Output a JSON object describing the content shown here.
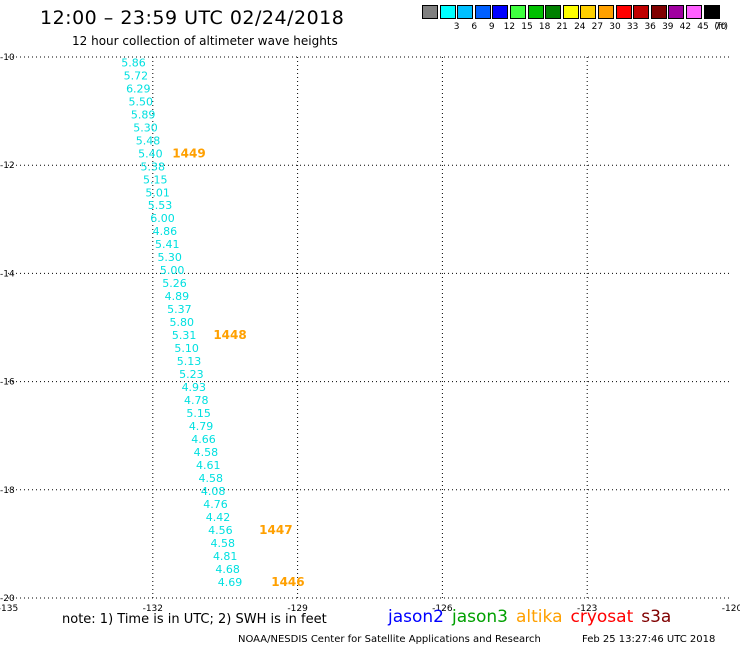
{
  "header": {
    "title": "12:00 – 23:59 UTC 02/24/2018",
    "subtitle": "12 hour collection of altimeter wave heights"
  },
  "legend": {
    "unit": "(ft)",
    "items": [
      {
        "label": "",
        "color": "#808080"
      },
      {
        "label": "3",
        "color": "#00ffff"
      },
      {
        "label": "6",
        "color": "#00c0ff"
      },
      {
        "label": "9",
        "color": "#0060ff"
      },
      {
        "label": "12",
        "color": "#0000ff"
      },
      {
        "label": "15",
        "color": "#40ff40"
      },
      {
        "label": "18",
        "color": "#00c000"
      },
      {
        "label": "21",
        "color": "#008000"
      },
      {
        "label": "24",
        "color": "#ffff00"
      },
      {
        "label": "27",
        "color": "#ffd000"
      },
      {
        "label": "30",
        "color": "#ffa000"
      },
      {
        "label": "33",
        "color": "#ff0000"
      },
      {
        "label": "36",
        "color": "#c00000"
      },
      {
        "label": "39",
        "color": "#800000"
      },
      {
        "label": "42",
        "color": "#a000a0"
      },
      {
        "label": "45",
        "color": "#ff60ff"
      },
      {
        "label": "70",
        "color": "#000000"
      }
    ]
  },
  "map": {
    "lon_range": [
      -135,
      -120
    ],
    "lat_range": [
      -20,
      -10
    ],
    "x_ticks": [
      "-135",
      "-132",
      "-129",
      "-126",
      "-123",
      "-120"
    ],
    "y_ticks": [
      "-10",
      "-12",
      "-14",
      "-16",
      "-18",
      "-20"
    ],
    "grid": "dotted",
    "wave_color": "#00e0e0",
    "time_color": "#ffa000",
    "wave_heights": [
      {
        "value": "5.86",
        "lon": -132.4,
        "lat": -10.1
      },
      {
        "value": "5.72",
        "lon": -132.35,
        "lat": -10.34
      },
      {
        "value": "6.29",
        "lon": -132.3,
        "lat": -10.58
      },
      {
        "value": "5.50",
        "lon": -132.25,
        "lat": -10.82
      },
      {
        "value": "5.89",
        "lon": -132.2,
        "lat": -11.06
      },
      {
        "value": "5.30",
        "lon": -132.15,
        "lat": -11.3
      },
      {
        "value": "5.48",
        "lon": -132.1,
        "lat": -11.54
      },
      {
        "value": "5.40",
        "lon": -132.05,
        "lat": -11.78
      },
      {
        "value": "5.38",
        "lon": -132.0,
        "lat": -12.02
      },
      {
        "value": "5.15",
        "lon": -131.95,
        "lat": -12.26
      },
      {
        "value": "5.01",
        "lon": -131.9,
        "lat": -12.5
      },
      {
        "value": "5.53",
        "lon": -131.85,
        "lat": -12.74
      },
      {
        "value": "6.00",
        "lon": -131.8,
        "lat": -12.98
      },
      {
        "value": "4.86",
        "lon": -131.75,
        "lat": -13.22
      },
      {
        "value": "5.41",
        "lon": -131.7,
        "lat": -13.46
      },
      {
        "value": "5.30",
        "lon": -131.65,
        "lat": -13.7
      },
      {
        "value": "5.00",
        "lon": -131.6,
        "lat": -13.94
      },
      {
        "value": "5.26",
        "lon": -131.55,
        "lat": -14.18
      },
      {
        "value": "4.89",
        "lon": -131.5,
        "lat": -14.42
      },
      {
        "value": "5.37",
        "lon": -131.45,
        "lat": -14.66
      },
      {
        "value": "5.80",
        "lon": -131.4,
        "lat": -14.9
      },
      {
        "value": "5.31",
        "lon": -131.35,
        "lat": -15.14
      },
      {
        "value": "5.10",
        "lon": -131.3,
        "lat": -15.38
      },
      {
        "value": "5.13",
        "lon": -131.25,
        "lat": -15.62
      },
      {
        "value": "5.23",
        "lon": -131.2,
        "lat": -15.86
      },
      {
        "value": "4.93",
        "lon": -131.15,
        "lat": -16.1
      },
      {
        "value": "4.78",
        "lon": -131.1,
        "lat": -16.34
      },
      {
        "value": "5.15",
        "lon": -131.05,
        "lat": -16.58
      },
      {
        "value": "4.79",
        "lon": -131.0,
        "lat": -16.82
      },
      {
        "value": "4.66",
        "lon": -130.95,
        "lat": -17.06
      },
      {
        "value": "4.58",
        "lon": -130.9,
        "lat": -17.3
      },
      {
        "value": "4.61",
        "lon": -130.85,
        "lat": -17.54
      },
      {
        "value": "4.58",
        "lon": -130.8,
        "lat": -17.78
      },
      {
        "value": "4.08",
        "lon": -130.75,
        "lat": -18.02
      },
      {
        "value": "4.76",
        "lon": -130.7,
        "lat": -18.26
      },
      {
        "value": "4.42",
        "lon": -130.65,
        "lat": -18.5
      },
      {
        "value": "4.56",
        "lon": -130.6,
        "lat": -18.74
      },
      {
        "value": "4.58",
        "lon": -130.55,
        "lat": -18.98
      },
      {
        "value": "4.81",
        "lon": -130.5,
        "lat": -19.22
      },
      {
        "value": "4.68",
        "lon": -130.45,
        "lat": -19.46
      },
      {
        "value": "4.69",
        "lon": -130.4,
        "lat": -19.7
      }
    ],
    "pass_times": [
      {
        "value": "1449",
        "lon": -131.25,
        "lat": -11.78
      },
      {
        "value": "1448",
        "lon": -130.4,
        "lat": -15.14
      },
      {
        "value": "1447",
        "lon": -129.45,
        "lat": -18.74
      },
      {
        "value": "1446",
        "lon": -129.2,
        "lat": -19.7
      }
    ]
  },
  "footer": {
    "note": "note:  1) Time is in UTC; 2) SWH is in feet",
    "satellites": [
      {
        "name": "jason2",
        "color": "#0000ff"
      },
      {
        "name": "jason3",
        "color": "#00a000"
      },
      {
        "name": "altika",
        "color": "#ffa000"
      },
      {
        "name": "cryosat",
        "color": "#ff0000"
      },
      {
        "name": "s3a",
        "color": "#800000"
      }
    ],
    "credit": "NOAA/NESDIS Center for Satellite Applications and Research",
    "timestamp": "Feb 25 13:27:46 UTC 2018"
  }
}
